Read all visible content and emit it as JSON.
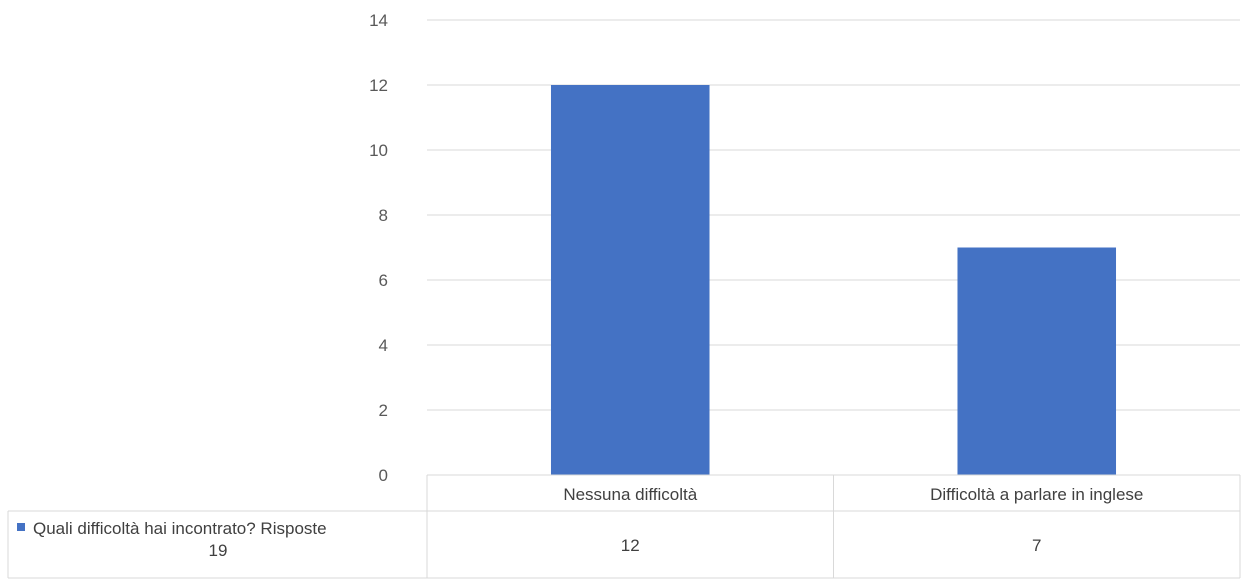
{
  "chart_data": {
    "type": "bar",
    "categories": [
      "Nessuna difficoltà",
      "Difficoltà a parlare in inglese"
    ],
    "series": [
      {
        "name": "Quali difficoltà hai incontrato? Risposte 19",
        "name_lines": [
          "Quali difficoltà hai incontrato? Risposte",
          "19"
        ],
        "values": [
          12,
          7
        ],
        "color": "#4472C4"
      }
    ],
    "ylim": [
      0,
      14
    ],
    "yticks": [
      0,
      2,
      4,
      6,
      8,
      10,
      12,
      14
    ],
    "grid": true,
    "legend": "data-table",
    "gridline_color": "#D9D9D9"
  }
}
